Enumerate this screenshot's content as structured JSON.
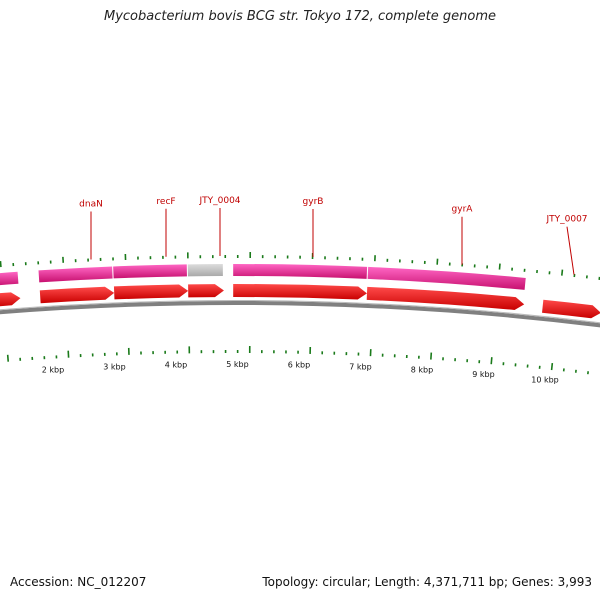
{
  "title": "Mycobacterium bovis BCG str. Tokyo 172, complete genome",
  "footer": {
    "accession": "Accession: NC_012207",
    "summary": "Topology: circular; Length: 4,371,711 bp; Genes: 3,993"
  },
  "colors": {
    "cds_fill": "#ff0000",
    "gene_band": "#e8178a",
    "unlabeled_band": "#bdbdbd",
    "backbone": "#808080",
    "gc_tick": "#1a7a1a",
    "label": "#c00000"
  },
  "chart_data": {
    "type": "genome_map",
    "topology": "circular",
    "length_bp": 4371711,
    "gene_count": 3993,
    "scale_ticks": [
      {
        "kbp": 2,
        "label": "2 kbp"
      },
      {
        "kbp": 3,
        "label": "3 kbp"
      },
      {
        "kbp": 4,
        "label": "4 kbp"
      },
      {
        "kbp": 5,
        "label": "5 kbp"
      },
      {
        "kbp": 6,
        "label": "6 kbp"
      },
      {
        "kbp": 7,
        "label": "7 kbp"
      },
      {
        "kbp": 8,
        "label": "8 kbp"
      },
      {
        "kbp": 9,
        "label": "9 kbp"
      },
      {
        "kbp": 10,
        "label": "10 kbp"
      }
    ],
    "genes": [
      {
        "id": "g0",
        "label": "",
        "start_kbp": 0.9,
        "end_kbp": 1.0,
        "band": "gene"
      },
      {
        "id": "dnaN",
        "label": "dnaN",
        "start_kbp": 1.8,
        "end_kbp": 3.0,
        "band": "gene"
      },
      {
        "id": "recF",
        "label": "recF",
        "start_kbp": 3.0,
        "end_kbp": 4.2,
        "band": "gene"
      },
      {
        "id": "JTY_0004",
        "label": "JTY_0004",
        "start_kbp": 4.2,
        "end_kbp": 4.78,
        "band": "unlabeled"
      },
      {
        "id": "gyrB",
        "label": "gyrB",
        "start_kbp": 4.93,
        "end_kbp": 7.1,
        "band": "gene"
      },
      {
        "id": "gyrA",
        "label": "gyrA",
        "start_kbp": 7.1,
        "end_kbp": 9.65,
        "band": "gene"
      },
      {
        "id": "JTY_0007",
        "label": "JTY_0007",
        "start_kbp": 9.95,
        "end_kbp": 10.9,
        "band": "none"
      }
    ]
  }
}
